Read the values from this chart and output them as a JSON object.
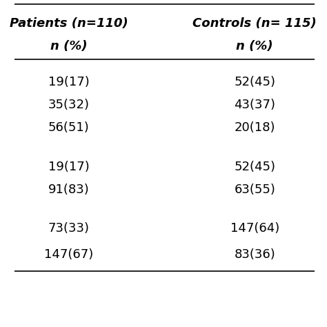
{
  "col_headers": [
    "Patients (n=110)",
    "",
    "Controls (n= 115)",
    ""
  ],
  "sub_headers": [
    "n (%)",
    "",
    "n (%)",
    ""
  ],
  "sections": [
    {
      "rows": [
        {
          "col1": "19(17)",
          "col2": "52(45)"
        },
        {
          "col1": "35(32)",
          "col2": "43(37)"
        },
        {
          "col1": "56(51)",
          "col2": "20(18)"
        }
      ]
    },
    {
      "rows": [
        {
          "col1": "19(17)",
          "col2": "52(45)"
        },
        {
          "col1": "91(83)",
          "col2": "63(55)"
        }
      ]
    },
    {
      "rows": [
        {
          "col1": "73(33)",
          "col2": "147(64)"
        },
        {
          "col1": "147(67)",
          "col2": "83(36)"
        }
      ]
    }
  ],
  "header1": "Patients (n=110)",
  "header2": "Controls (n= 115)",
  "subheader": "n (%)",
  "bg_color": "#ffffff",
  "text_color": "#000000",
  "line_color": "#000000",
  "font_size": 13,
  "header_font_size": 13
}
